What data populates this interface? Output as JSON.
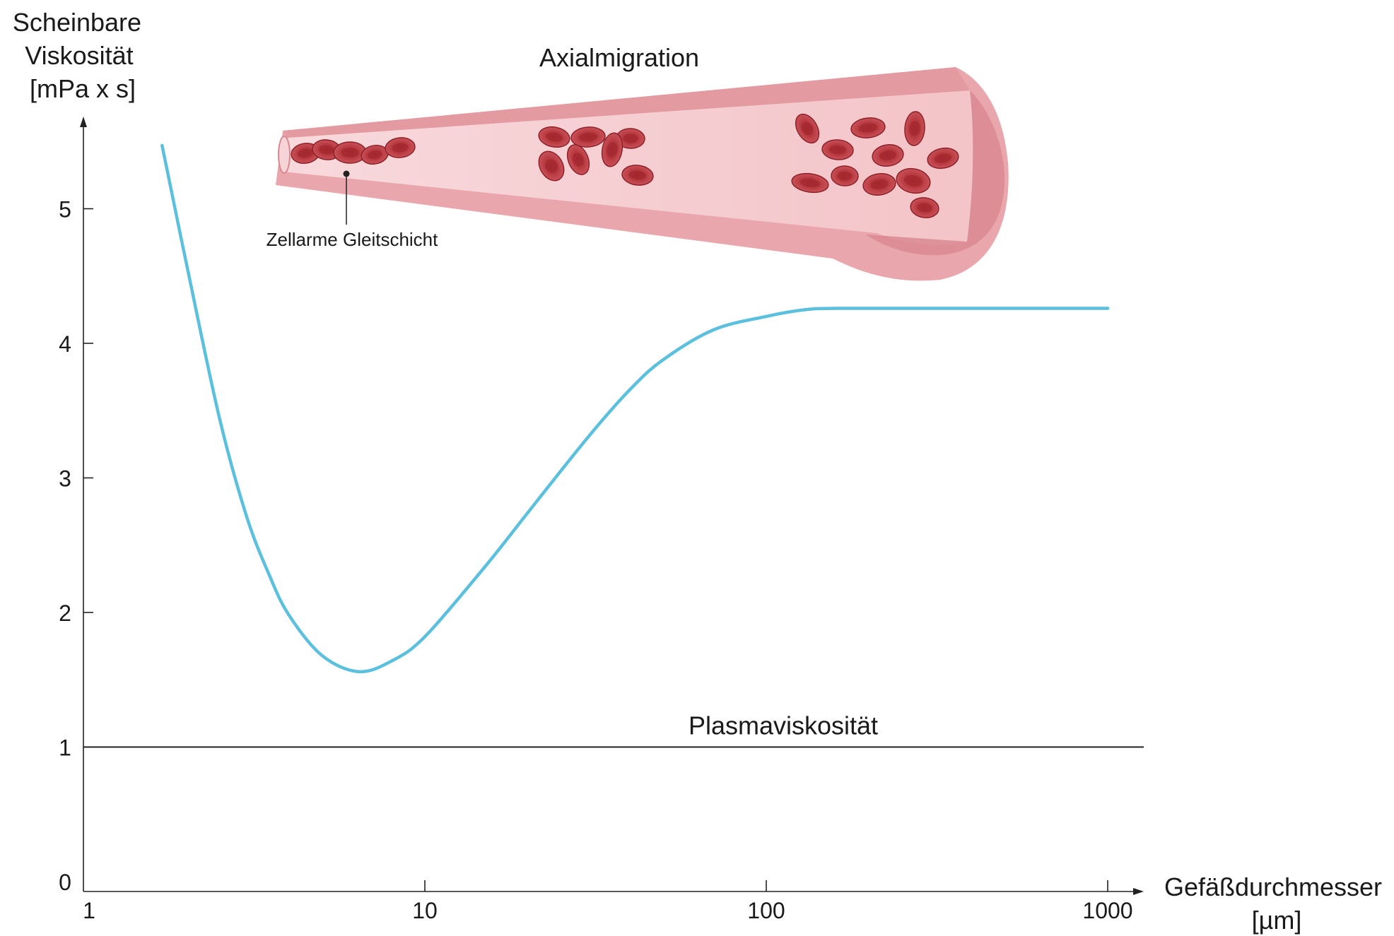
{
  "chart_data": {
    "type": "line",
    "title": "",
    "ylabel_lines": [
      "Scheinbare",
      "Viskosität",
      "[mPa x s]"
    ],
    "xlabel_lines": [
      "Gefäßdurchmesser",
      "[µm]"
    ],
    "x_scale": "log",
    "xlim": [
      1,
      1050
    ],
    "ylim": [
      0,
      5.6
    ],
    "x_ticks": [
      {
        "value": 1,
        "label": "1"
      },
      {
        "value": 10,
        "label": "10"
      },
      {
        "value": 100,
        "label": "100"
      },
      {
        "value": 1000,
        "label": "1000"
      }
    ],
    "y_ticks": [
      {
        "value": 0,
        "label": "0"
      },
      {
        "value": 1,
        "label": "1"
      },
      {
        "value": 2,
        "label": "2"
      },
      {
        "value": 3,
        "label": "3"
      },
      {
        "value": 4,
        "label": "4"
      },
      {
        "value": 5,
        "label": "5"
      }
    ],
    "grid": false,
    "series": [
      {
        "color": "#5bc0de",
        "x": [
          1.7,
          2.0,
          2.5,
          3.0,
          3.5,
          4.0,
          5.0,
          6.4,
          8.0,
          10,
          15,
          20,
          30,
          40,
          50,
          70,
          100,
          130,
          160,
          300,
          600,
          1000
        ],
        "y": [
          5.47,
          4.6,
          3.45,
          2.72,
          2.28,
          1.98,
          1.68,
          1.56,
          1.64,
          1.82,
          2.34,
          2.74,
          3.3,
          3.66,
          3.88,
          4.1,
          4.2,
          4.25,
          4.26,
          4.26,
          4.26,
          4.26
        ]
      }
    ],
    "reference_line": {
      "y": 1,
      "label": "Plasmaviskosität",
      "color": "#222222"
    },
    "annotations": [
      {
        "text": "Axialmigration"
      },
      {
        "text": "Zellarme Gleitschicht"
      }
    ]
  }
}
